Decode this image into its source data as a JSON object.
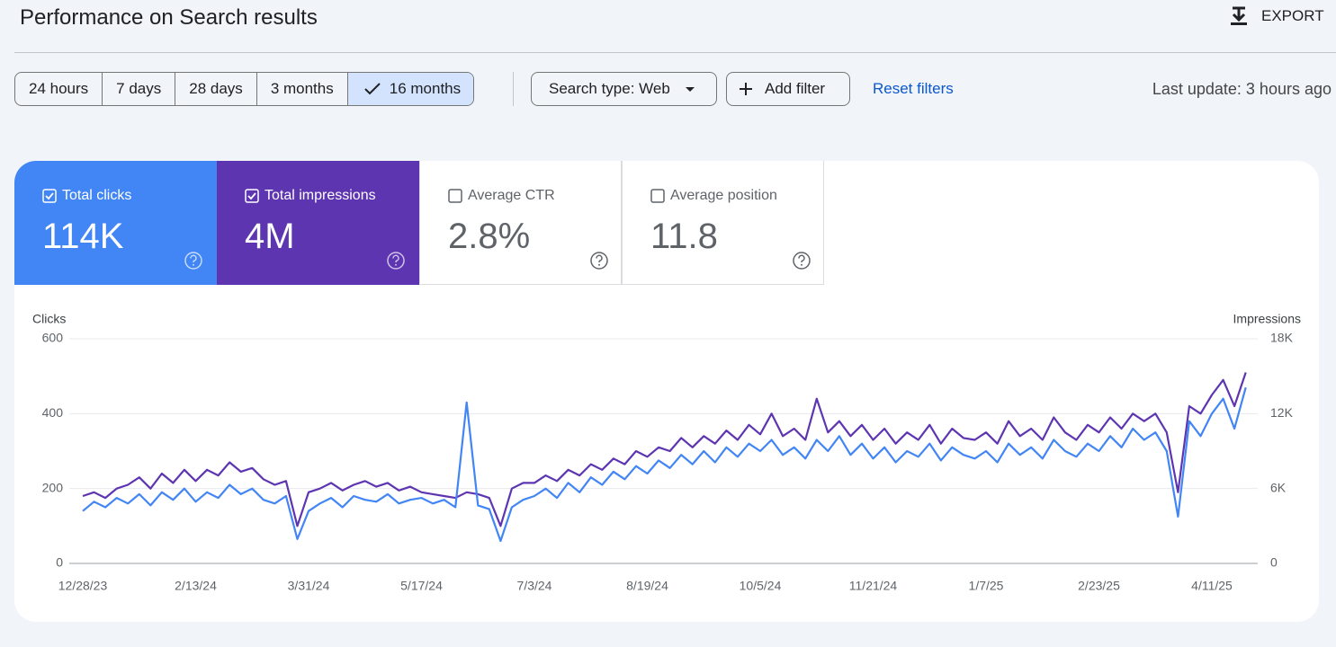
{
  "header": {
    "title": "Performance on Search results",
    "export": "EXPORT"
  },
  "filters": {
    "ranges": [
      "24 hours",
      "7 days",
      "28 days",
      "3 months",
      "16 months"
    ],
    "selected": 4,
    "search_type": "Search type: Web",
    "add_filter": "Add filter",
    "reset_filters": "Reset filters",
    "last_update": "Last update: 3 hours ago"
  },
  "metrics": [
    {
      "label": "Total clicks",
      "value": "114K",
      "checked": true,
      "color": "#4285f4"
    },
    {
      "label": "Total impressions",
      "value": "4M",
      "checked": true,
      "color": "#5e35b1"
    },
    {
      "label": "Average CTR",
      "value": "2.8%",
      "checked": false,
      "color": "#00897b"
    },
    {
      "label": "Average position",
      "value": "11.8",
      "checked": false,
      "color": "#e8710a"
    }
  ],
  "chart_data": {
    "type": "line",
    "x": [
      "12/28/23",
      null,
      null,
      null,
      null,
      null,
      null,
      null,
      null,
      null,
      "2/13/24",
      null,
      null,
      null,
      null,
      null,
      null,
      null,
      null,
      null,
      "3/31/24",
      null,
      null,
      null,
      null,
      null,
      null,
      null,
      null,
      null,
      "5/17/24",
      null,
      null,
      null,
      null,
      null,
      null,
      null,
      null,
      null,
      "7/3/24",
      null,
      null,
      null,
      null,
      null,
      null,
      null,
      null,
      null,
      "8/19/24",
      null,
      null,
      null,
      null,
      null,
      null,
      null,
      null,
      null,
      "10/5/24",
      null,
      null,
      null,
      null,
      null,
      null,
      null,
      null,
      null,
      "11/21/24",
      null,
      null,
      null,
      null,
      null,
      null,
      null,
      null,
      null,
      "1/7/25",
      null,
      null,
      null,
      null,
      null,
      null,
      null,
      null,
      null,
      "2/23/25",
      null,
      null,
      null,
      null,
      null,
      null,
      null,
      null,
      null,
      "4/11/25",
      null,
      null,
      null
    ],
    "series": [
      {
        "name": "Clicks",
        "color": "#4285f4",
        "values": [
          140,
          165,
          150,
          175,
          160,
          185,
          155,
          190,
          170,
          200,
          165,
          190,
          175,
          210,
          185,
          200,
          170,
          160,
          180,
          65,
          140,
          160,
          175,
          150,
          180,
          170,
          165,
          185,
          160,
          170,
          175,
          160,
          170,
          150,
          430,
          155,
          145,
          60,
          150,
          170,
          180,
          200,
          175,
          215,
          190,
          230,
          210,
          245,
          225,
          260,
          240,
          275,
          255,
          290,
          265,
          300,
          270,
          310,
          285,
          320,
          300,
          330,
          290,
          310,
          280,
          330,
          300,
          340,
          290,
          320,
          280,
          310,
          270,
          300,
          285,
          320,
          275,
          310,
          290,
          280,
          300,
          270,
          320,
          290,
          310,
          280,
          330,
          300,
          285,
          320,
          300,
          340,
          310,
          360,
          330,
          350,
          300,
          125,
          380,
          340,
          400,
          440,
          360,
          470
        ]
      },
      {
        "name": "Impressions",
        "color": "#5e35b1",
        "axis": "y2",
        "values": [
          5400,
          5700,
          5250,
          6000,
          6300,
          6900,
          6000,
          7200,
          6450,
          7500,
          6600,
          7500,
          7050,
          8100,
          7350,
          7650,
          6750,
          6300,
          6600,
          3000,
          5700,
          6000,
          6450,
          5850,
          6300,
          6600,
          6150,
          6450,
          5850,
          6150,
          5700,
          5550,
          5400,
          5250,
          5700,
          5550,
          5250,
          3000,
          6000,
          6450,
          6450,
          7050,
          6600,
          7500,
          7050,
          7950,
          7500,
          8400,
          7950,
          9000,
          8550,
          9300,
          9000,
          10050,
          9300,
          10200,
          9600,
          10650,
          9900,
          11100,
          10350,
          12000,
          10200,
          10800,
          9900,
          13200,
          10500,
          11400,
          10200,
          11100,
          9900,
          10800,
          9600,
          10500,
          9900,
          11100,
          9600,
          10800,
          10050,
          9900,
          10500,
          9600,
          11400,
          10200,
          10800,
          9900,
          11700,
          10500,
          9900,
          11100,
          10500,
          11700,
          10800,
          12000,
          11400,
          12000,
          10500,
          5700,
          12600,
          12000,
          13500,
          14700,
          12600,
          15300
        ]
      }
    ],
    "ylim": [
      0,
      600
    ],
    "yticks": [
      0,
      200,
      400,
      600
    ],
    "y2lim": [
      0,
      18000
    ],
    "y2ticks": [
      0,
      {
        "value": 6000,
        "label": "6K"
      },
      {
        "value": 12000,
        "label": "12K"
      },
      {
        "value": 18000,
        "label": "18K"
      }
    ],
    "grid": true
  }
}
